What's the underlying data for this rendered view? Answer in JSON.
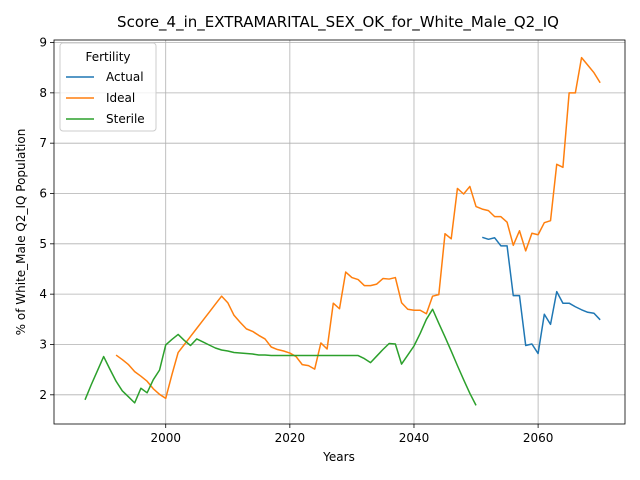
{
  "chart_data": {
    "type": "line",
    "title": "Score_4_in_EXTRAMARITAL_SEX_OK_for_White_Male_Q2_IQ",
    "xlabel": "Years",
    "ylabel": "% of White_Male Q2_IQ Population",
    "xlim": [
      1982,
      2074
    ],
    "ylim": [
      1.42,
      9.05
    ],
    "xticks": [
      2000,
      2020,
      2040,
      2060
    ],
    "yticks": [
      2,
      3,
      4,
      5,
      6,
      7,
      8,
      9
    ],
    "grid": true,
    "legend": {
      "title": "Fertility",
      "placement": "top-left"
    },
    "series": [
      {
        "name": "Actual",
        "color": "#1f77b4",
        "x": [
          2051,
          2052,
          2053,
          2054,
          2055,
          2056,
          2057,
          2058,
          2059,
          2060,
          2061,
          2062,
          2063,
          2064,
          2065,
          2066,
          2067,
          2068,
          2069,
          2070
        ],
        "y": [
          5.13,
          5.09,
          5.12,
          4.96,
          4.96,
          3.97,
          3.97,
          2.98,
          3.01,
          2.82,
          3.6,
          3.4,
          4.05,
          3.82,
          3.82,
          3.75,
          3.69,
          3.64,
          3.62,
          3.49
        ]
      },
      {
        "name": "Ideal",
        "color": "#ff7f0e",
        "x": [
          1992,
          1993,
          1994,
          1995,
          1996,
          1997,
          1998,
          1999,
          2000,
          2001,
          2002,
          2003,
          2004,
          2005,
          2006,
          2007,
          2008,
          2009,
          2010,
          2011,
          2012,
          2013,
          2014,
          2015,
          2016,
          2017,
          2018,
          2019,
          2020,
          2021,
          2022,
          2023,
          2024,
          2025,
          2026,
          2027,
          2028,
          2029,
          2030,
          2031,
          2032,
          2033,
          2034,
          2035,
          2036,
          2037,
          2038,
          2039,
          2040,
          2041,
          2042,
          2043,
          2044,
          2045,
          2046,
          2047,
          2048,
          2049,
          2050,
          2051,
          2052,
          2053,
          2054,
          2055,
          2056,
          2057,
          2058,
          2059,
          2060,
          2061,
          2062,
          2063,
          2064,
          2065,
          2066,
          2067,
          2068,
          2069,
          2070
        ],
        "y": [
          2.79,
          2.7,
          2.6,
          2.46,
          2.37,
          2.27,
          2.12,
          2.01,
          1.93,
          2.4,
          2.84,
          3.0,
          3.16,
          3.32,
          3.48,
          3.64,
          3.8,
          3.96,
          3.83,
          3.58,
          3.44,
          3.31,
          3.26,
          3.18,
          3.11,
          2.95,
          2.9,
          2.87,
          2.83,
          2.76,
          2.6,
          2.58,
          2.51,
          3.03,
          2.91,
          3.82,
          3.71,
          4.44,
          4.33,
          4.29,
          4.17,
          4.17,
          4.2,
          4.31,
          4.3,
          4.33,
          3.83,
          3.7,
          3.68,
          3.68,
          3.61,
          3.96,
          3.99,
          5.2,
          5.1,
          6.1,
          5.99,
          6.14,
          5.74,
          5.69,
          5.66,
          5.54,
          5.54,
          5.43,
          4.97,
          5.26,
          4.86,
          5.21,
          5.18,
          5.42,
          5.46,
          6.58,
          6.52,
          8.0,
          8.0,
          8.7,
          8.55,
          8.4,
          8.2
        ]
      },
      {
        "name": "Sterile",
        "color": "#2ca02c",
        "x": [
          1987,
          1988,
          1989,
          1990,
          1991,
          1992,
          1993,
          1994,
          1995,
          1996,
          1997,
          1998,
          1999,
          2000,
          2001,
          2002,
          2003,
          2004,
          2005,
          2006,
          2007,
          2008,
          2009,
          2010,
          2011,
          2012,
          2013,
          2014,
          2015,
          2016,
          2017,
          2018,
          2019,
          2020,
          2021,
          2022,
          2023,
          2024,
          2025,
          2026,
          2027,
          2028,
          2029,
          2030,
          2031,
          2032,
          2033,
          2034,
          2035,
          2036,
          2037,
          2038,
          2039,
          2040,
          2041,
          2042,
          2043,
          2044,
          2045,
          2046,
          2047,
          2048,
          2049,
          2050
        ],
        "y": [
          1.9,
          2.2,
          2.48,
          2.76,
          2.51,
          2.27,
          2.08,
          1.96,
          1.84,
          2.13,
          2.04,
          2.3,
          2.49,
          2.99,
          3.1,
          3.2,
          3.08,
          2.98,
          3.11,
          3.05,
          2.99,
          2.93,
          2.89,
          2.87,
          2.84,
          2.83,
          2.82,
          2.81,
          2.79,
          2.79,
          2.78,
          2.78,
          2.78,
          2.78,
          2.78,
          2.78,
          2.78,
          2.78,
          2.78,
          2.78,
          2.78,
          2.78,
          2.78,
          2.78,
          2.78,
          2.72,
          2.64,
          2.77,
          2.9,
          3.02,
          3.01,
          2.61,
          2.79,
          2.97,
          3.22,
          3.5,
          3.7,
          3.42,
          3.15,
          2.87,
          2.58,
          2.3,
          2.03,
          1.79
        ]
      }
    ]
  }
}
